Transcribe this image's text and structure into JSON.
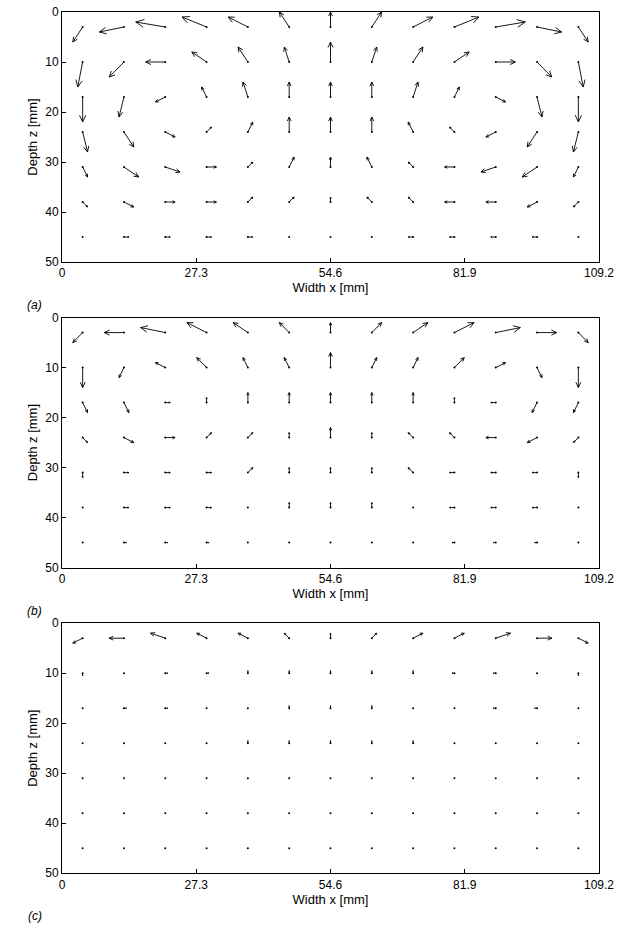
{
  "chart_data": [
    {
      "type": "quiver",
      "label": "(a)",
      "x_label": "Width x [mm]",
      "y_label": "Depth z [mm]",
      "xlim": [
        0,
        109.2
      ],
      "ylim": [
        0,
        50
      ],
      "xticks": [
        0,
        27.3,
        54.6,
        81.9,
        109.2
      ],
      "yticks": [
        0,
        10,
        20,
        30,
        40,
        50
      ],
      "grid": false,
      "x": [
        4.2,
        12.6,
        21,
        29.4,
        37.8,
        46.2,
        54.6,
        63,
        71.4,
        79.8,
        88.2,
        96.6,
        105
      ],
      "z": [
        3,
        10,
        17,
        24,
        31,
        38,
        45
      ],
      "u": [
        [
          -2,
          -5,
          -6,
          -5,
          -4,
          -2,
          0,
          2,
          4,
          5,
          6,
          5,
          2
        ],
        [
          -1,
          -3,
          -4,
          -3,
          -2,
          -1,
          0,
          1,
          2,
          3,
          4,
          3,
          1
        ],
        [
          0,
          -1,
          -2,
          -1,
          -1,
          0,
          0,
          0,
          1,
          1,
          2,
          1,
          0
        ],
        [
          1,
          2,
          2,
          1,
          1,
          0,
          0,
          0,
          -1,
          -1,
          -2,
          -2,
          -1
        ],
        [
          1,
          3,
          3,
          2,
          1,
          1,
          0,
          -1,
          -1,
          -2,
          -3,
          -3,
          -1
        ],
        [
          1,
          2,
          2,
          2,
          1,
          1,
          0,
          -1,
          -1,
          -2,
          -2,
          -2,
          -1
        ],
        [
          0,
          1,
          1,
          1,
          1,
          0,
          0,
          0,
          -1,
          -1,
          -1,
          -1,
          0
        ]
      ],
      "w": [
        [
          3,
          1,
          -1,
          -2,
          -2,
          -3,
          -3,
          -3,
          -2,
          -2,
          -1,
          1,
          3
        ],
        [
          5,
          3,
          0,
          -2,
          -3,
          -3,
          -4,
          -3,
          -3,
          -2,
          0,
          3,
          5
        ],
        [
          5,
          4,
          1,
          -2,
          -3,
          -3,
          -3,
          -3,
          -3,
          -2,
          1,
          4,
          5
        ],
        [
          4,
          3,
          1,
          -1,
          -2,
          -3,
          -3,
          -3,
          -2,
          -1,
          1,
          3,
          4
        ],
        [
          2,
          2,
          1,
          0,
          -1,
          -2,
          -2,
          -2,
          -1,
          0,
          1,
          2,
          2
        ],
        [
          1,
          1,
          0,
          0,
          -1,
          -1,
          -1,
          -1,
          -1,
          0,
          0,
          1,
          1
        ],
        [
          0,
          0,
          0,
          0,
          0,
          0,
          0,
          0,
          0,
          0,
          0,
          0,
          0
        ]
      ]
    },
    {
      "type": "quiver",
      "label": "(b)",
      "x_label": "Width x [mm]",
      "y_label": "Depth z [mm]",
      "xlim": [
        0,
        109.2
      ],
      "ylim": [
        0,
        50
      ],
      "xticks": [
        0,
        27.3,
        54.6,
        81.9,
        109.2
      ],
      "yticks": [
        0,
        10,
        20,
        30,
        40,
        50
      ],
      "grid": false,
      "x": [
        4.2,
        12.6,
        21,
        29.4,
        37.8,
        46.2,
        54.6,
        63,
        71.4,
        79.8,
        88.2,
        96.6,
        105
      ],
      "z": [
        3,
        10,
        17,
        24,
        31,
        38,
        45
      ],
      "u": [
        [
          -2,
          -4,
          -5,
          -4,
          -3,
          -2,
          0,
          2,
          3,
          4,
          5,
          4,
          2
        ],
        [
          0,
          -1,
          -2,
          -2,
          -1,
          -1,
          0,
          1,
          1,
          2,
          2,
          1,
          0
        ],
        [
          1,
          1,
          1,
          0,
          0,
          0,
          0,
          0,
          0,
          0,
          -1,
          -1,
          -1
        ],
        [
          1,
          2,
          2,
          1,
          1,
          0,
          0,
          0,
          -1,
          -1,
          -2,
          -2,
          -1
        ],
        [
          0,
          1,
          1,
          1,
          1,
          0,
          0,
          0,
          -1,
          -1,
          -1,
          -1,
          0
        ],
        [
          0,
          1,
          1,
          1,
          0,
          0,
          0,
          0,
          0,
          -1,
          -1,
          -1,
          0
        ],
        [
          0,
          0.5,
          0.5,
          0.5,
          0,
          0,
          0,
          0,
          0,
          -0.5,
          -0.5,
          -0.5,
          0
        ]
      ],
      "w": [
        [
          2,
          0,
          -1,
          -2,
          -2,
          -2,
          -2,
          -2,
          -2,
          -2,
          -1,
          0,
          2
        ],
        [
          4,
          2,
          -1,
          -2,
          -2,
          -2,
          -3,
          -2,
          -2,
          -2,
          -1,
          2,
          4
        ],
        [
          2,
          2,
          0,
          -1,
          -2,
          -2,
          -2,
          -2,
          -2,
          -1,
          0,
          2,
          2
        ],
        [
          1,
          1,
          0,
          -1,
          -1,
          -1,
          -2,
          -1,
          -1,
          -1,
          0,
          1,
          1
        ],
        [
          1,
          0,
          0,
          0,
          -1,
          -1,
          -1,
          -1,
          -1,
          0,
          0,
          0,
          1
        ],
        [
          0,
          0,
          0,
          0,
          0,
          -1,
          -1,
          -1,
          0,
          0,
          0,
          0,
          0
        ],
        [
          0,
          0,
          0,
          0,
          0,
          0,
          0,
          0,
          0,
          0,
          0,
          0,
          0
        ]
      ]
    },
    {
      "type": "quiver",
      "label": "(c)",
      "x_label": "Width x [mm]",
      "y_label": "Depth z [mm]",
      "xlim": [
        0,
        109.2
      ],
      "ylim": [
        0,
        50
      ],
      "xticks": [
        0,
        27.3,
        54.6,
        81.9,
        109.2
      ],
      "yticks": [
        0,
        10,
        20,
        30,
        40,
        50
      ],
      "grid": false,
      "x": [
        4.2,
        12.6,
        21,
        29.4,
        37.8,
        46.2,
        54.6,
        63,
        71.4,
        79.8,
        88.2,
        96.6,
        105
      ],
      "z": [
        3,
        10,
        17,
        24,
        31,
        38,
        45
      ],
      "u": [
        [
          -2,
          -3,
          -3,
          -2,
          -2,
          -1,
          0,
          1,
          2,
          2,
          3,
          3,
          2
        ],
        [
          0,
          0,
          0.5,
          0.5,
          0,
          0,
          0,
          0,
          0,
          -0.5,
          -0.5,
          0,
          0
        ],
        [
          0,
          0.5,
          0.5,
          0,
          0,
          0,
          0,
          0,
          0,
          0,
          -0.5,
          -0.5,
          0
        ],
        [
          0,
          0,
          0,
          0,
          0,
          0,
          0,
          0,
          0,
          0,
          0,
          0,
          0
        ],
        [
          0,
          0,
          0,
          0,
          0,
          0,
          0,
          0,
          0,
          0,
          0,
          0,
          0
        ],
        [
          0,
          0,
          0,
          0,
          0,
          0,
          0,
          0,
          0,
          0,
          0,
          0,
          0
        ],
        [
          0,
          0,
          0,
          0,
          0,
          0,
          0,
          0,
          0,
          0,
          0,
          0,
          0
        ]
      ],
      "w": [
        [
          1,
          0,
          -1,
          -1,
          -1,
          -1,
          -1,
          -1,
          -1,
          -1,
          -1,
          0,
          1
        ],
        [
          0.5,
          0,
          0,
          0,
          -0.5,
          -0.5,
          -0.5,
          -0.5,
          -0.5,
          0,
          0,
          0,
          0.5
        ],
        [
          0,
          0,
          0,
          0,
          0,
          -0.5,
          -0.5,
          -0.5,
          0,
          0,
          0,
          0,
          0
        ],
        [
          0,
          0,
          0,
          0,
          -0.5,
          -0.5,
          -0.5,
          -0.5,
          -0.5,
          0,
          0,
          0,
          0
        ],
        [
          0,
          0,
          0,
          0,
          0,
          0,
          0,
          0,
          0,
          0,
          0,
          0,
          0
        ],
        [
          0,
          0,
          0,
          0,
          0,
          0,
          0,
          0,
          0,
          0,
          0,
          0,
          0
        ],
        [
          0,
          0,
          0,
          0,
          0,
          0,
          0,
          0,
          0,
          0,
          0,
          0,
          0
        ]
      ]
    }
  ]
}
